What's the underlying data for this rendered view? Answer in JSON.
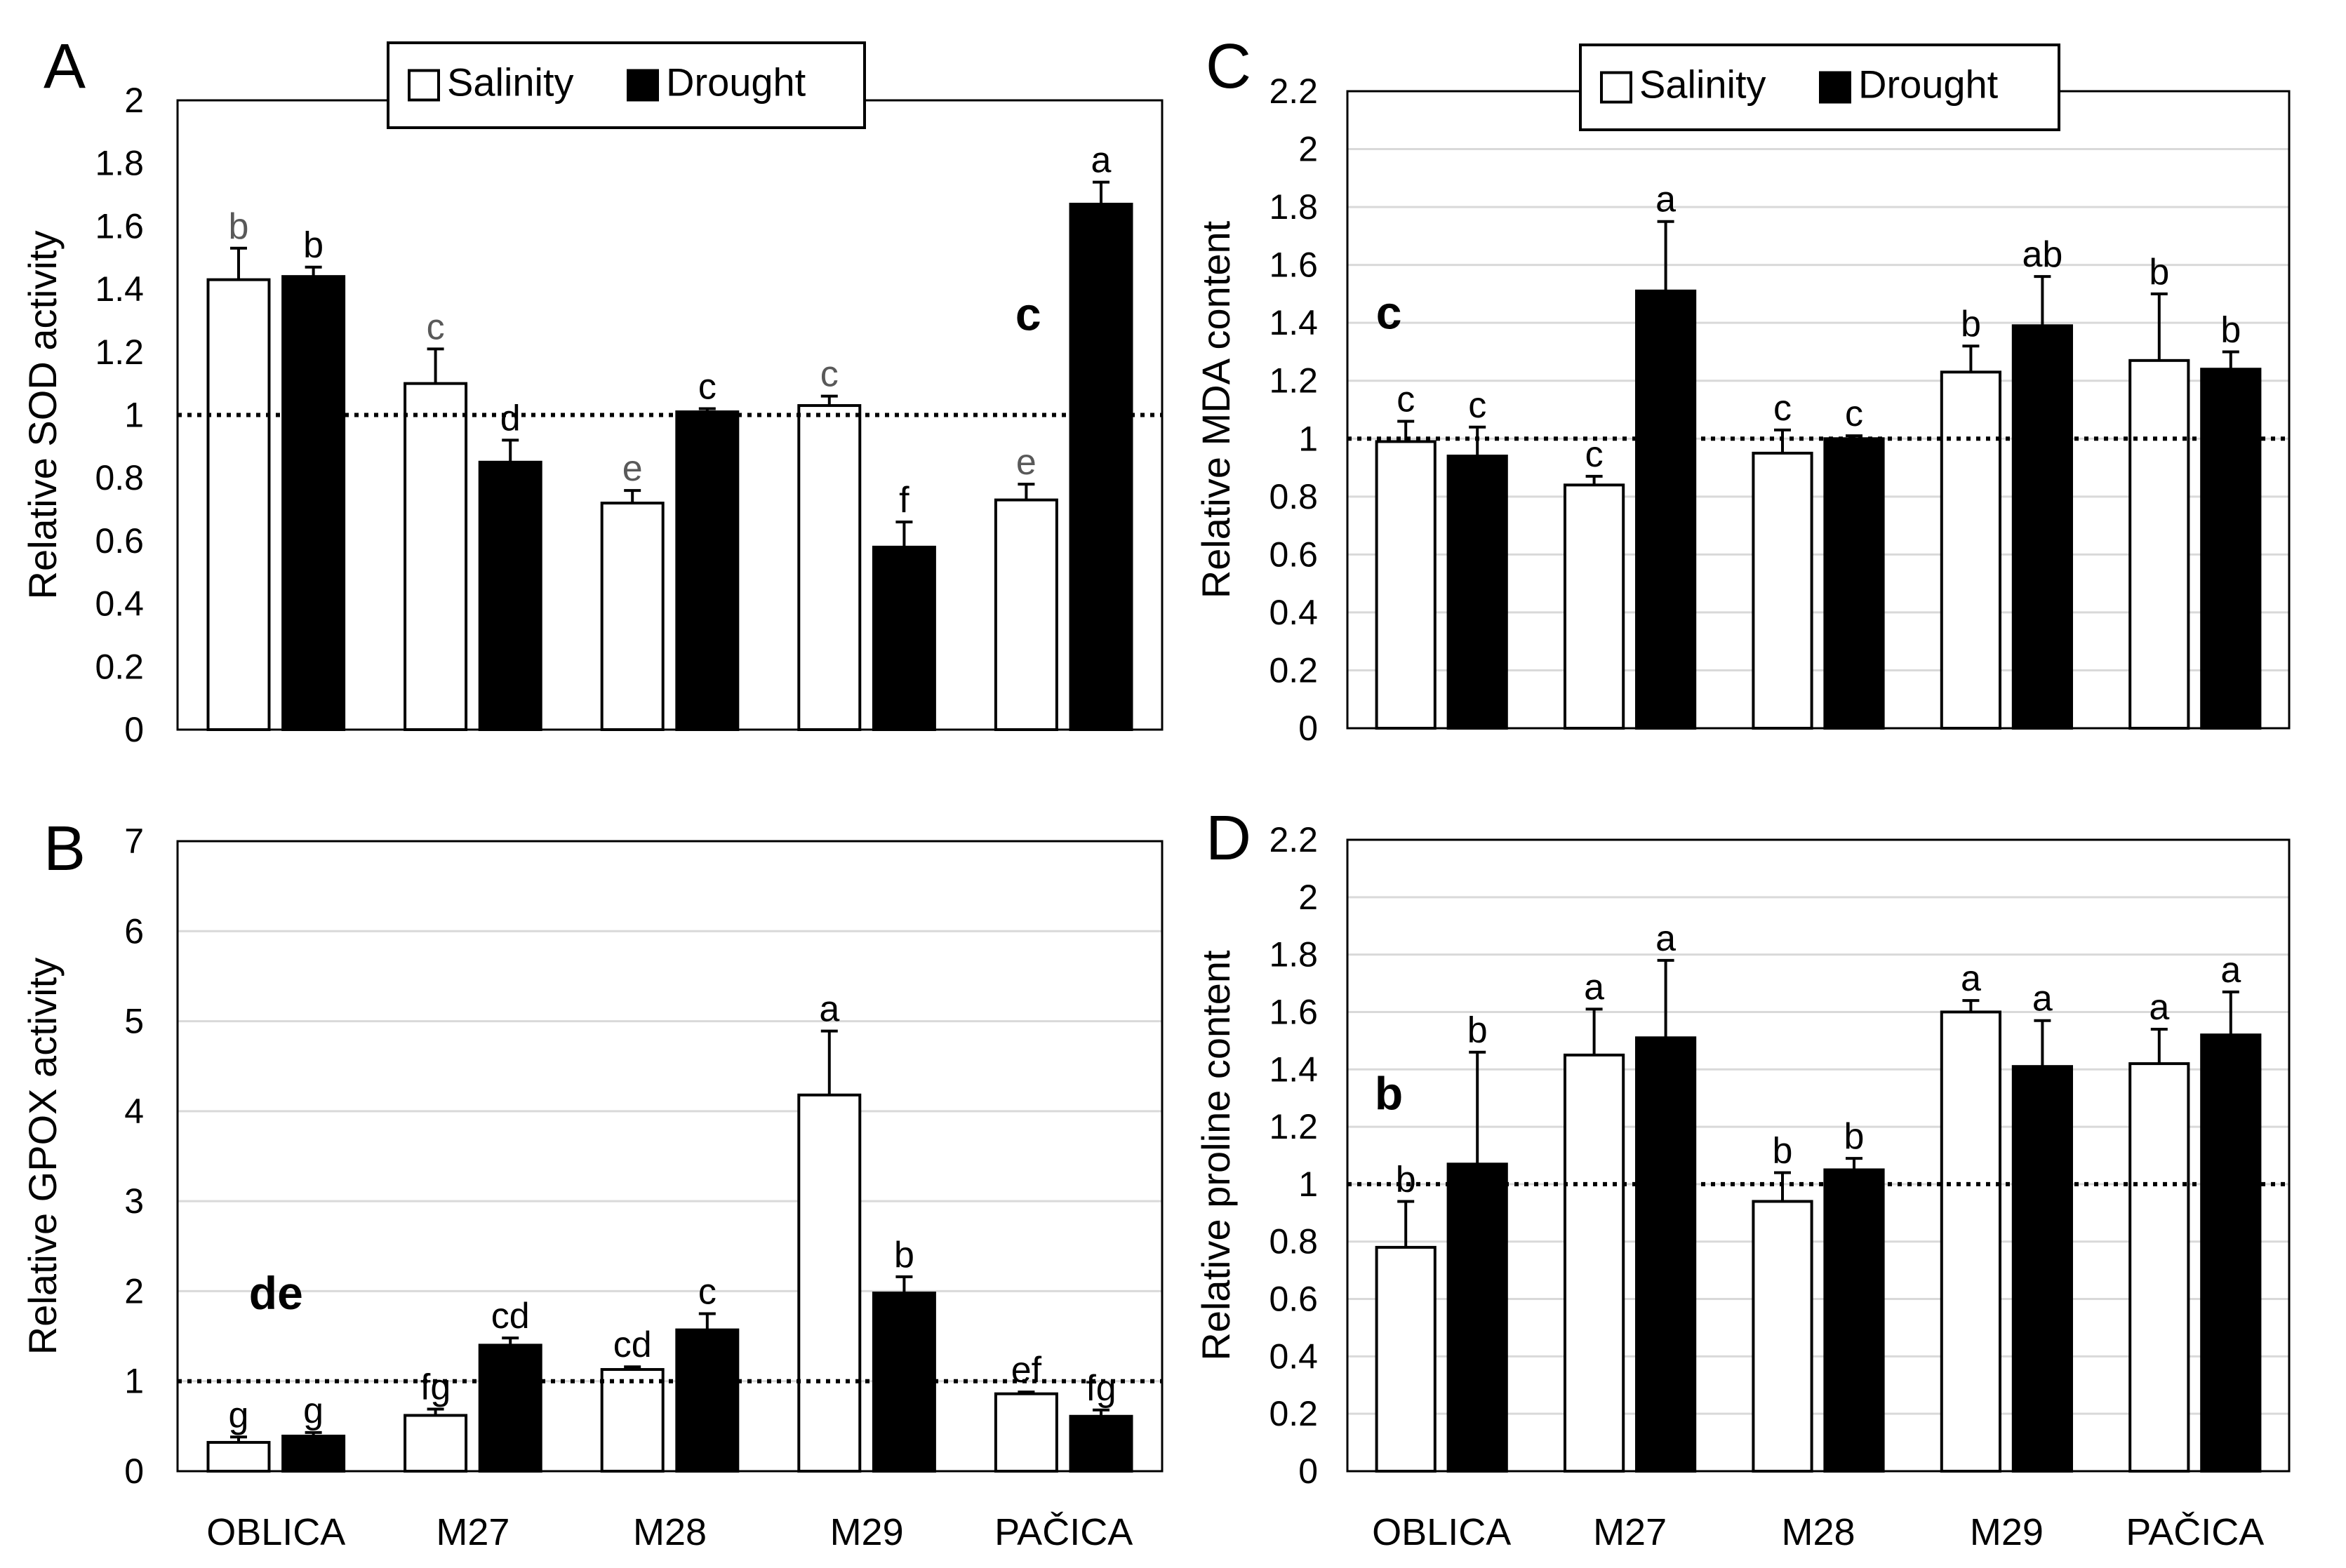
{
  "figure": {
    "categories": [
      "OBLICA",
      "M27",
      "M28",
      "M29",
      "PAČICA"
    ],
    "legend": {
      "salinity_label": "Salinity",
      "drought_label": "Drought"
    },
    "colors": {
      "salinity_fill": "#ffffff",
      "drought_fill": "#000000",
      "bar_stroke": "#000000",
      "gridline": "#d9d9d9",
      "grey_letter": "#595959",
      "reference_line": "#000000"
    }
  },
  "chart_data": [
    {
      "panel": "A",
      "type": "bar",
      "ylabel": "Relative SOD activity",
      "ylim": [
        0,
        2
      ],
      "yticks": [
        "0",
        "0.2",
        "0.4",
        "0.6",
        "0.8",
        "1",
        "1.2",
        "1.4",
        "1.6",
        "1.8",
        "2"
      ],
      "reference_line": 1.0,
      "grid": false,
      "legend": true,
      "legend_placement": "top-center",
      "categories": [
        "OBLICA",
        "M27",
        "M28",
        "M29",
        "PAČICA"
      ],
      "series": [
        {
          "name": "Salinity",
          "values": [
            1.43,
            1.1,
            0.72,
            1.03,
            0.73
          ],
          "errors": [
            0.1,
            0.11,
            0.04,
            0.03,
            0.05
          ],
          "letters": [
            "b",
            "c",
            "e",
            "c",
            "e"
          ],
          "letter_color": "grey"
        },
        {
          "name": "Drought",
          "values": [
            1.44,
            0.85,
            1.01,
            0.58,
            1.67
          ],
          "errors": [
            0.03,
            0.07,
            0.01,
            0.08,
            0.07
          ],
          "letters": [
            "b",
            "d",
            "c",
            "f",
            "a"
          ],
          "letter_color": "black"
        }
      ],
      "annotation": {
        "text": "c",
        "x_category_index": 4,
        "x_offset": -0.18,
        "y": 1.27
      }
    },
    {
      "panel": "B",
      "type": "bar",
      "ylabel": "Relative GPOX activity",
      "ylim": [
        0,
        7
      ],
      "yticks": [
        "0",
        "1",
        "2",
        "3",
        "4",
        "5",
        "6",
        "7"
      ],
      "reference_line": 1.0,
      "grid": true,
      "legend": false,
      "categories": [
        "OBLICA",
        "M27",
        "M28",
        "M29",
        "PAČICA"
      ],
      "series": [
        {
          "name": "Salinity",
          "values": [
            0.32,
            0.62,
            1.13,
            4.18,
            0.86
          ],
          "errors": [
            0.06,
            0.07,
            0.03,
            0.71,
            0.02
          ],
          "letters": [
            "g",
            "fg",
            "cd",
            "a",
            "ef"
          ],
          "letter_color": "black"
        },
        {
          "name": "Drought",
          "values": [
            0.39,
            1.4,
            1.57,
            1.98,
            0.61
          ],
          "errors": [
            0.04,
            0.08,
            0.18,
            0.18,
            0.07
          ],
          "letters": [
            "g",
            "cd",
            "c",
            "b",
            "fg"
          ],
          "letter_color": "black"
        }
      ],
      "annotation": {
        "text": "de",
        "x_category_index": 0,
        "x_offset": 0.0,
        "y": 1.8
      }
    },
    {
      "panel": "C",
      "type": "bar",
      "ylabel": "Relative MDA content",
      "ylim": [
        0,
        2.2
      ],
      "yticks": [
        "0",
        "0.2",
        "0.4",
        "0.6",
        "0.8",
        "1",
        "1.2",
        "1.4",
        "1.6",
        "1.8",
        "2",
        "2.2"
      ],
      "reference_line": 1.0,
      "grid": true,
      "legend": true,
      "legend_placement": "top-center",
      "categories": [
        "OBLICA",
        "M27",
        "M28",
        "M29",
        "PAČICA"
      ],
      "series": [
        {
          "name": "Salinity",
          "values": [
            0.99,
            0.84,
            0.95,
            1.23,
            1.27
          ],
          "errors": [
            0.07,
            0.03,
            0.08,
            0.09,
            0.23
          ],
          "letters": [
            "c",
            "c",
            "c",
            "b",
            "b"
          ],
          "letter_color": "black"
        },
        {
          "name": "Drought",
          "values": [
            0.94,
            1.51,
            1.0,
            1.39,
            1.24
          ],
          "errors": [
            0.1,
            0.24,
            0.01,
            0.17,
            0.06
          ],
          "letters": [
            "c",
            "a",
            "c",
            "ab",
            "b"
          ],
          "letter_color": "black"
        }
      ],
      "annotation": {
        "text": "c",
        "x_category_index": 0,
        "x_offset": -0.28,
        "y": 1.38
      }
    },
    {
      "panel": "D",
      "type": "bar",
      "ylabel": "Relative proline content",
      "ylim": [
        0,
        2.2
      ],
      "yticks": [
        "0",
        "0.2",
        "0.4",
        "0.6",
        "0.8",
        "1",
        "1.2",
        "1.4",
        "1.6",
        "1.8",
        "2",
        "2.2"
      ],
      "reference_line": 1.0,
      "grid": true,
      "legend": false,
      "categories": [
        "OBLICA",
        "M27",
        "M28",
        "M29",
        "PAČICA"
      ],
      "series": [
        {
          "name": "Salinity",
          "values": [
            0.78,
            1.45,
            0.94,
            1.6,
            1.42
          ],
          "errors": [
            0.16,
            0.16,
            0.1,
            0.04,
            0.12
          ],
          "letters": [
            "b",
            "a",
            "b",
            "a",
            "a"
          ],
          "letter_color": "black"
        },
        {
          "name": "Drought",
          "values": [
            1.07,
            1.51,
            1.05,
            1.41,
            1.52
          ],
          "errors": [
            0.39,
            0.27,
            0.04,
            0.16,
            0.15
          ],
          "letters": [
            "b",
            "a",
            "b",
            "a",
            "a"
          ],
          "letter_color": "black"
        }
      ],
      "annotation": {
        "text": "b",
        "x_category_index": 0,
        "x_offset": -0.28,
        "y": 1.26
      }
    }
  ]
}
